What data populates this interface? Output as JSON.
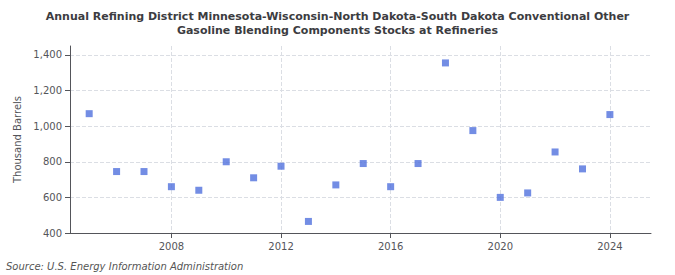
{
  "chart_data": {
    "type": "scatter",
    "title": "Annual Refining District Minnesota-Wisconsin-North Dakota-South Dakota Conventional Other\nGasoline Blending Components Stocks at Refineries",
    "y_label": "Thousand Barrels",
    "annotations": [
      "Source: U.S. Energy Information Administration"
    ],
    "x": [
      2005,
      2006,
      2007,
      2008,
      2009,
      2010,
      2011,
      2012,
      2013,
      2014,
      2015,
      2016,
      2017,
      2018,
      2019,
      2020,
      2021,
      2022,
      2023,
      2024
    ],
    "values": [
      1070,
      745,
      745,
      660,
      640,
      800,
      710,
      775,
      465,
      670,
      790,
      660,
      790,
      1355,
      975,
      600,
      625,
      855,
      760,
      1065
    ],
    "marker": "square",
    "xlim": [
      2004.3,
      2025.5
    ],
    "xticks": [
      2008,
      2012,
      2016,
      2020,
      2024
    ],
    "ylim": [
      400,
      1450
    ],
    "yticks": [
      400,
      600,
      800,
      {
        "value": 1000,
        "label": "1,000"
      },
      {
        "value": 1200,
        "label": "1,200"
      },
      {
        "value": 1400,
        "label": "1,400"
      }
    ],
    "grid": true
  }
}
